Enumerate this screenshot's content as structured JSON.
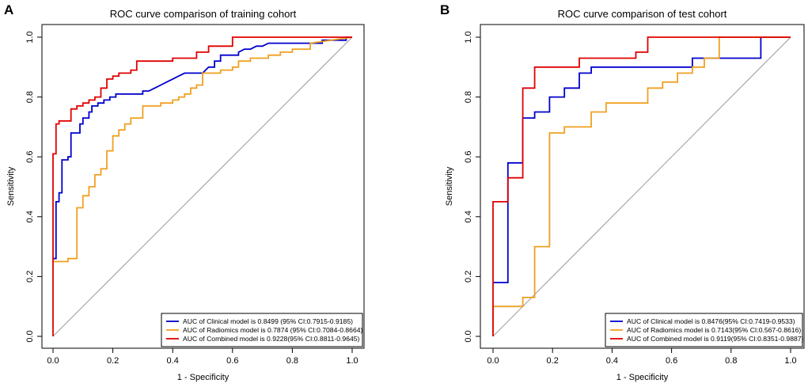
{
  "figure": {
    "panel_labels": [
      "A",
      "B"
    ]
  },
  "chart_data": [
    {
      "type": "line",
      "panel": "A",
      "title": "ROC curve comparison of training cohort",
      "xlabel": "1 - Specificity",
      "ylabel": "Sensitivity",
      "xlim": [
        0,
        1
      ],
      "ylim": [
        0,
        1
      ],
      "x_ticks": [
        "0.0",
        "0.2",
        "0.4",
        "0.6",
        "0.8",
        "1.0"
      ],
      "y_ticks": [
        "0.0",
        "0.2",
        "0.4",
        "0.6",
        "0.8",
        "1.0"
      ],
      "legend_position": "bottom-right",
      "reference_line": {
        "x": [
          0,
          1
        ],
        "y": [
          0,
          1
        ],
        "color": "#999999"
      },
      "series": [
        {
          "name": "Clinical model",
          "legend": "AUC of  Clinical model  is 0.8499 (95% CI:0.7915-0.9185)",
          "color": "#0000cc",
          "x": [
            0,
            0.01,
            0.01,
            0.02,
            0.02,
            0.03,
            0.03,
            0.05,
            0.05,
            0.06,
            0.06,
            0.09,
            0.09,
            0.1,
            0.1,
            0.12,
            0.12,
            0.13,
            0.13,
            0.15,
            0.15,
            0.17,
            0.17,
            0.19,
            0.19,
            0.21,
            0.21,
            0.3,
            0.3,
            0.32,
            0.34,
            0.36,
            0.38,
            0.4,
            0.42,
            0.44,
            0.46,
            0.5,
            0.52,
            0.54,
            0.54,
            0.56,
            0.56,
            0.62,
            0.62,
            0.64,
            0.66,
            0.68,
            0.7,
            0.72,
            0.74,
            0.76,
            0.76,
            0.9,
            0.9,
            0.98,
            0.98,
            1.0
          ],
          "y": [
            0.26,
            0.26,
            0.45,
            0.45,
            0.48,
            0.48,
            0.59,
            0.59,
            0.6,
            0.6,
            0.68,
            0.68,
            0.71,
            0.71,
            0.73,
            0.73,
            0.75,
            0.75,
            0.77,
            0.77,
            0.78,
            0.78,
            0.79,
            0.79,
            0.8,
            0.8,
            0.81,
            0.81,
            0.82,
            0.82,
            0.83,
            0.84,
            0.85,
            0.86,
            0.87,
            0.88,
            0.88,
            0.88,
            0.9,
            0.9,
            0.92,
            0.92,
            0.94,
            0.94,
            0.95,
            0.96,
            0.96,
            0.97,
            0.97,
            0.98,
            0.98,
            0.98,
            0.98,
            0.98,
            0.99,
            0.99,
            1.0,
            1.0
          ]
        },
        {
          "name": "Radiomics model",
          "legend": "AUC of  Radiomics model  is 0.7874 (95% CI:0.7084-0.8664)",
          "color": "#f0a020",
          "x": [
            0,
            0.01,
            0.01,
            0.05,
            0.05,
            0.08,
            0.08,
            0.1,
            0.1,
            0.12,
            0.12,
            0.14,
            0.14,
            0.16,
            0.16,
            0.18,
            0.18,
            0.2,
            0.2,
            0.22,
            0.22,
            0.24,
            0.24,
            0.26,
            0.26,
            0.3,
            0.3,
            0.36,
            0.36,
            0.4,
            0.4,
            0.42,
            0.42,
            0.44,
            0.44,
            0.46,
            0.46,
            0.48,
            0.48,
            0.5,
            0.5,
            0.56,
            0.56,
            0.6,
            0.6,
            0.62,
            0.62,
            0.66,
            0.66,
            0.72,
            0.72,
            0.76,
            0.76,
            0.8,
            0.8,
            0.86,
            0.86,
            1.0
          ],
          "y": [
            0.25,
            0.25,
            0.25,
            0.25,
            0.26,
            0.26,
            0.43,
            0.43,
            0.47,
            0.47,
            0.5,
            0.5,
            0.54,
            0.54,
            0.56,
            0.56,
            0.62,
            0.62,
            0.67,
            0.67,
            0.69,
            0.69,
            0.71,
            0.71,
            0.73,
            0.73,
            0.77,
            0.77,
            0.78,
            0.78,
            0.79,
            0.79,
            0.8,
            0.8,
            0.81,
            0.81,
            0.83,
            0.83,
            0.84,
            0.84,
            0.88,
            0.88,
            0.89,
            0.89,
            0.9,
            0.9,
            0.92,
            0.92,
            0.93,
            0.93,
            0.94,
            0.94,
            0.95,
            0.95,
            0.96,
            0.96,
            0.98,
            1.0
          ]
        },
        {
          "name": "Combined model",
          "legend": "AUC of  Combined model is  0.9228(95% CI:0.8811-0.9645)",
          "color": "#e00000",
          "x": [
            0,
            0,
            0.01,
            0.01,
            0.02,
            0.02,
            0.06,
            0.06,
            0.08,
            0.08,
            0.1,
            0.1,
            0.12,
            0.12,
            0.14,
            0.14,
            0.16,
            0.16,
            0.18,
            0.18,
            0.2,
            0.2,
            0.22,
            0.22,
            0.26,
            0.26,
            0.28,
            0.28,
            0.4,
            0.4,
            0.48,
            0.48,
            0.52,
            0.52,
            0.6,
            0.6,
            1.0
          ],
          "y": [
            0,
            0.61,
            0.61,
            0.71,
            0.71,
            0.72,
            0.72,
            0.76,
            0.76,
            0.77,
            0.77,
            0.78,
            0.78,
            0.79,
            0.79,
            0.8,
            0.8,
            0.83,
            0.83,
            0.86,
            0.86,
            0.87,
            0.87,
            0.88,
            0.88,
            0.89,
            0.89,
            0.92,
            0.92,
            0.93,
            0.93,
            0.95,
            0.95,
            0.97,
            0.97,
            1.0,
            1.0
          ]
        }
      ]
    },
    {
      "type": "line",
      "panel": "B",
      "title": "ROC curve comparison of test cohort",
      "xlabel": "1 - Specificity",
      "ylabel": "Sensitivity",
      "xlim": [
        0,
        1
      ],
      "ylim": [
        0,
        1
      ],
      "x_ticks": [
        "0.0",
        "0.2",
        "0.4",
        "0.6",
        "0.8",
        "1.0"
      ],
      "y_ticks": [
        "0.0",
        "0.2",
        "0.4",
        "0.6",
        "0.8",
        "1.0"
      ],
      "legend_position": "bottom-right",
      "reference_line": {
        "x": [
          0,
          1
        ],
        "y": [
          0,
          1
        ],
        "color": "#999999"
      },
      "series": [
        {
          "name": "Clinical model",
          "legend": "AUC of  Clinical model is 0.8476(95% CI:0.7419-0.9533)",
          "color": "#0000cc",
          "x": [
            0,
            0.05,
            0.05,
            0.1,
            0.1,
            0.14,
            0.14,
            0.19,
            0.19,
            0.24,
            0.24,
            0.29,
            0.29,
            0.33,
            0.33,
            0.67,
            0.67,
            0.9,
            0.9,
            1.0
          ],
          "y": [
            0.18,
            0.18,
            0.58,
            0.58,
            0.73,
            0.73,
            0.75,
            0.75,
            0.8,
            0.8,
            0.83,
            0.83,
            0.88,
            0.88,
            0.9,
            0.9,
            0.93,
            0.93,
            1.0,
            1.0
          ]
        },
        {
          "name": "Radiomics model",
          "legend": "AUC of  Radiomics model is 0.7143(95% CI:0.567-0.8616)",
          "color": "#f0a020",
          "x": [
            0,
            0,
            0.1,
            0.1,
            0.14,
            0.14,
            0.19,
            0.19,
            0.24,
            0.24,
            0.33,
            0.33,
            0.38,
            0.38,
            0.52,
            0.52,
            0.57,
            0.57,
            0.62,
            0.62,
            0.67,
            0.67,
            0.71,
            0.71,
            0.76,
            0.76,
            1.0
          ],
          "y": [
            0,
            0.1,
            0.1,
            0.13,
            0.13,
            0.3,
            0.3,
            0.68,
            0.68,
            0.7,
            0.7,
            0.75,
            0.75,
            0.78,
            0.78,
            0.83,
            0.83,
            0.85,
            0.85,
            0.88,
            0.88,
            0.9,
            0.9,
            0.93,
            0.93,
            1.0,
            1.0
          ]
        },
        {
          "name": "Combined model",
          "legend": "AUC of  Combined model is 0.9119(95% CI:0.8351-0.9887)",
          "color": "#e00000",
          "x": [
            0,
            0,
            0.05,
            0.05,
            0.1,
            0.1,
            0.14,
            0.14,
            0.29,
            0.29,
            0.48,
            0.48,
            0.52,
            0.52,
            1.0
          ],
          "y": [
            0,
            0.45,
            0.45,
            0.53,
            0.53,
            0.83,
            0.83,
            0.9,
            0.9,
            0.93,
            0.93,
            0.95,
            0.95,
            1.0,
            1.0
          ]
        }
      ]
    }
  ]
}
